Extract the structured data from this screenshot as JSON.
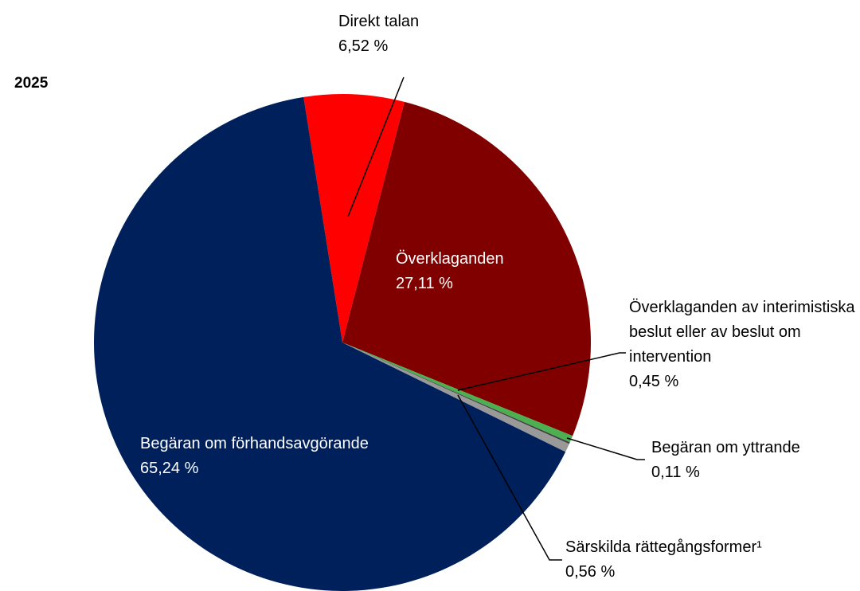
{
  "chart_data": {
    "type": "pie",
    "title": "2025",
    "categories": [
      "Direkt talan",
      "Överklaganden",
      "Överklaganden av interimistiska beslut eller av beslut om intervention",
      "Begäran om yttrande",
      "Särskilda rättegångsformer¹",
      "Begäran om förhandsavgörande"
    ],
    "values": [
      6.52,
      27.11,
      0.45,
      0.11,
      0.56,
      65.24
    ],
    "value_labels": [
      "6,52 %",
      "27,11 %",
      "0,45 %",
      "0,11 %",
      "0,56 %",
      "65,24 %"
    ],
    "colors": [
      "#ff0000",
      "#800000",
      "#4caf50",
      "#404040",
      "#999999",
      "#00205b"
    ]
  }
}
